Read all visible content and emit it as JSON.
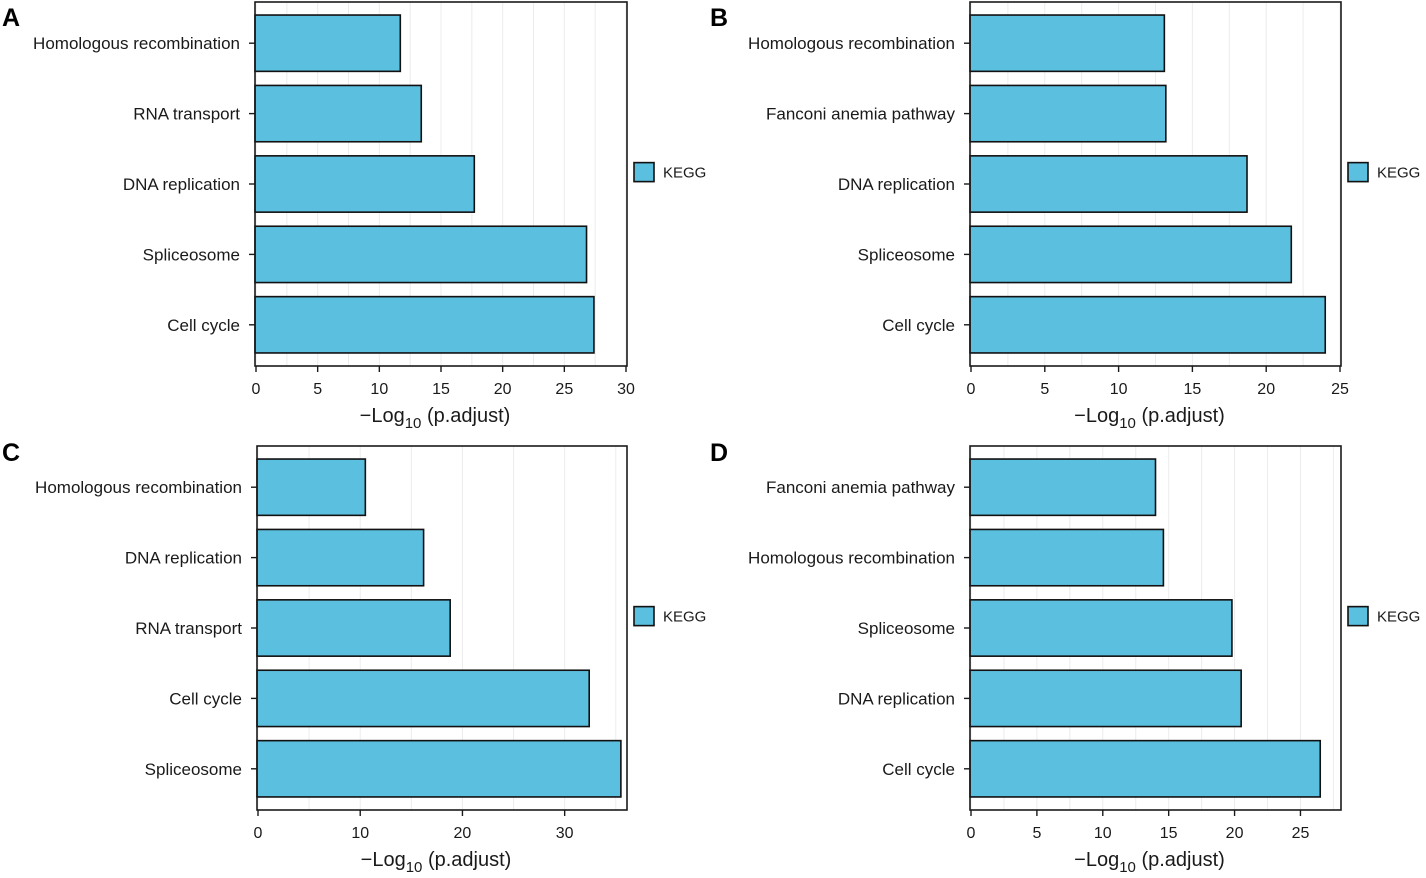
{
  "colors": {
    "bar": "#5bbfdf",
    "bar_stroke": "#111111",
    "frame": "#1a1a1a"
  },
  "chart_data": [
    {
      "panel": "A",
      "type": "bar",
      "orientation": "horizontal",
      "categories": [
        "Homologous recombination",
        "RNA transport",
        "DNA replication",
        "Spliceosome",
        "Cell cycle"
      ],
      "values": [
        11.7,
        13.4,
        17.7,
        26.8,
        27.4
      ],
      "xlim": [
        0,
        30
      ],
      "xticks": [
        0,
        5,
        10,
        15,
        20,
        25,
        30
      ],
      "xlabel_pre": "−Log",
      "xlabel_sub": "10",
      "xlabel_post": " (p.adjust)",
      "legend": "KEGG"
    },
    {
      "panel": "B",
      "type": "bar",
      "orientation": "horizontal",
      "categories": [
        "Homologous recombination",
        "Fanconi anemia pathway",
        "DNA replication",
        "Spliceosome",
        "Cell cycle"
      ],
      "values": [
        13.1,
        13.2,
        18.7,
        21.7,
        24.0
      ],
      "xlim": [
        0,
        25
      ],
      "xticks": [
        0,
        5,
        10,
        15,
        20,
        25
      ],
      "xlabel_pre": "−Log",
      "xlabel_sub": "10",
      "xlabel_post": " (p.adjust)",
      "legend": "KEGG"
    },
    {
      "panel": "C",
      "type": "bar",
      "orientation": "horizontal",
      "categories": [
        "Homologous recombination",
        "DNA replication",
        "RNA transport",
        "Cell cycle",
        "Spliceosome"
      ],
      "values": [
        10.5,
        16.2,
        18.8,
        32.4,
        35.5
      ],
      "xlim": [
        0,
        36
      ],
      "xticks": [
        0,
        10,
        20,
        30
      ],
      "xlabel_pre": "−Log",
      "xlabel_sub": "10",
      "xlabel_post": " (p.adjust)",
      "legend": "KEGG"
    },
    {
      "panel": "D",
      "type": "bar",
      "orientation": "horizontal",
      "categories": [
        "Fanconi anemia pathway",
        "Homologous recombination",
        "Spliceosome",
        "DNA replication",
        "Cell cycle"
      ],
      "values": [
        14.0,
        14.6,
        19.8,
        20.5,
        26.5
      ],
      "xlim": [
        0,
        28
      ],
      "xticks": [
        0,
        5,
        10,
        15,
        20,
        25
      ],
      "xlabel_pre": "−Log",
      "xlabel_sub": "10",
      "xlabel_post": " (p.adjust)",
      "legend": "KEGG"
    }
  ]
}
